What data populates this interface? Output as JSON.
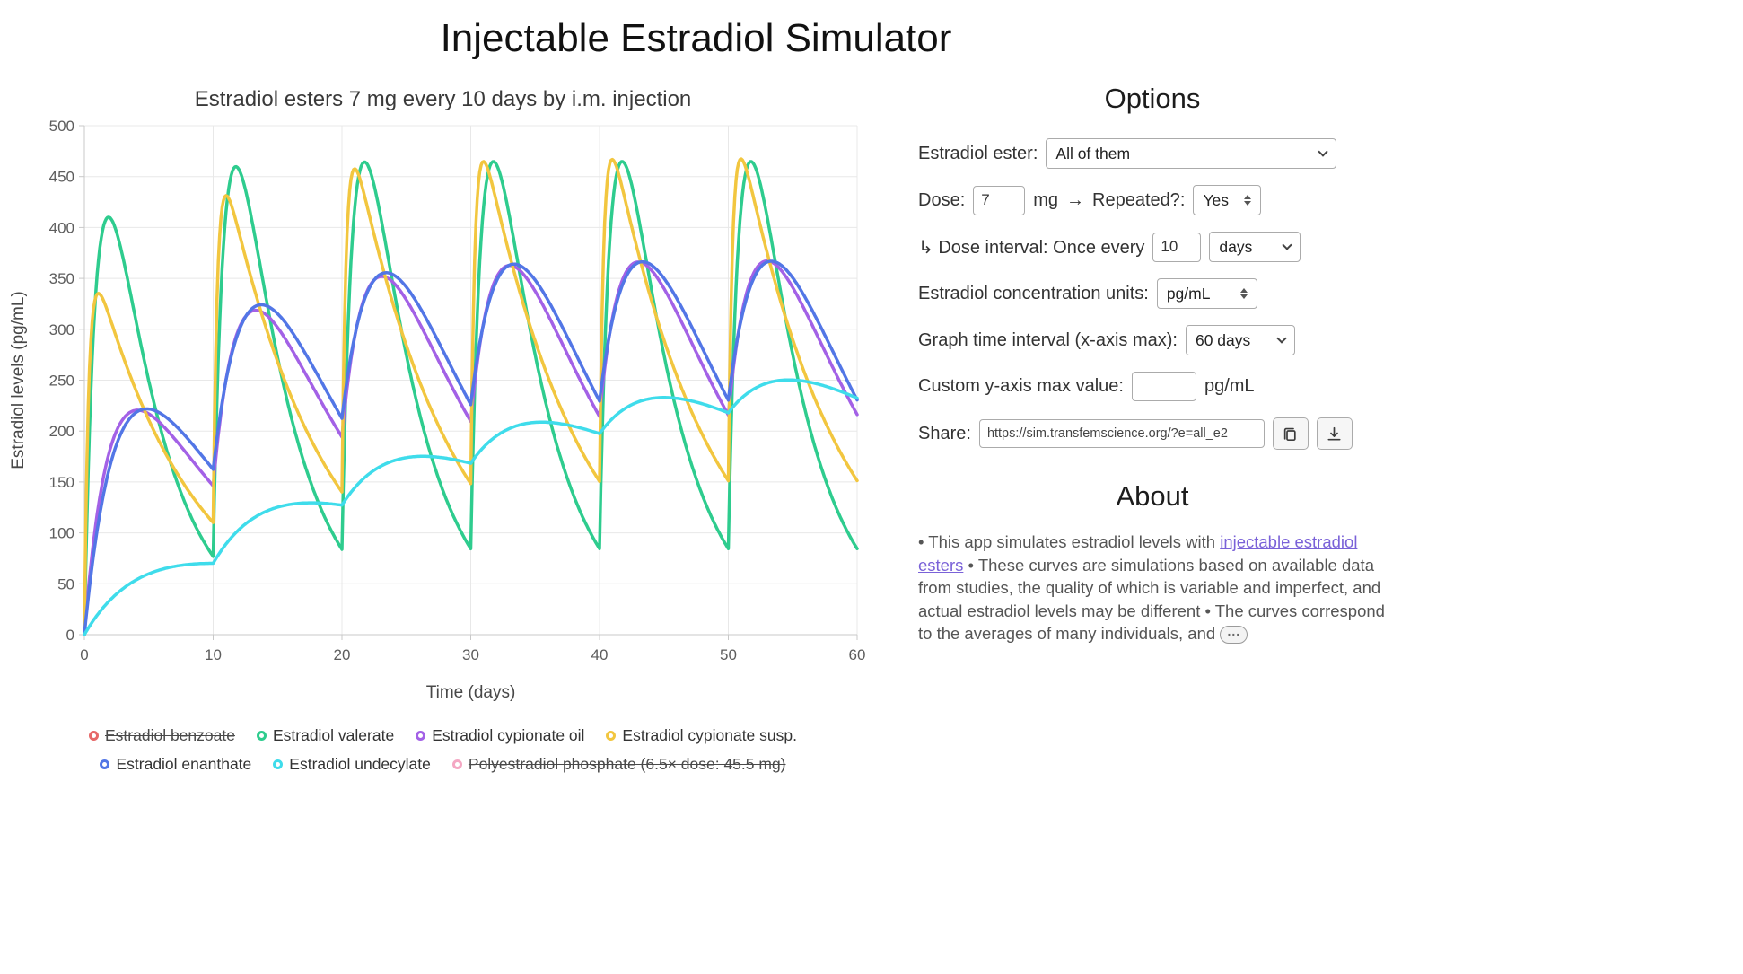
{
  "page": {
    "title": "Injectable Estradiol Simulator"
  },
  "chart_data": {
    "type": "line",
    "title": "Estradiol esters 7 mg every 10 days by i.m. injection",
    "xlabel": "Time (days)",
    "ylabel": "Estradiol levels (pg/mL)",
    "xlim": [
      0,
      60
    ],
    "ylim": [
      0,
      500
    ],
    "x_ticks": [
      0,
      10,
      20,
      30,
      40,
      50,
      60
    ],
    "y_ticks": [
      0,
      50,
      100,
      150,
      200,
      250,
      300,
      350,
      400,
      450,
      500
    ],
    "grid": true,
    "legend_position": "bottom",
    "dose_mg": 7,
    "dose_interval_days": 10,
    "dose_times": [
      0,
      10,
      20,
      30,
      40,
      50
    ],
    "series": [
      {
        "name": "Estradiol valerate",
        "color": "#2ecc8e",
        "model": {
          "C": 847,
          "ka": 1.0,
          "ke": 0.24
        },
        "points_read": [
          [
            0,
            0
          ],
          [
            1.9,
            410
          ],
          [
            10,
            86
          ],
          [
            11.9,
            461
          ],
          [
            20,
            87
          ],
          [
            21.9,
            466
          ],
          [
            30,
            88
          ],
          [
            31.9,
            466
          ],
          [
            40,
            87
          ],
          [
            41.9,
            466
          ],
          [
            50,
            88
          ],
          [
            51.9,
            466
          ],
          [
            60,
            90
          ]
        ]
      },
      {
        "name": "Estradiol cypionate oil",
        "color": "#a361e6",
        "model": {
          "C": 480,
          "ka": 0.44,
          "ke": 0.115
        },
        "points_read": [
          [
            0,
            0
          ],
          [
            4.1,
            215
          ],
          [
            10,
            141
          ],
          [
            14.1,
            309
          ],
          [
            20.5,
            192
          ],
          [
            24.1,
            338
          ],
          [
            30.5,
            204
          ],
          [
            34.1,
            351
          ],
          [
            40.5,
            209
          ],
          [
            44.1,
            357
          ],
          [
            50.5,
            211
          ],
          [
            54.1,
            360
          ],
          [
            60,
            224
          ]
        ]
      },
      {
        "name": "Estradiol cypionate susp.",
        "color": "#f2c63f",
        "model": {
          "C": 404,
          "ka": 3.0,
          "ke": 0.13
        },
        "points_read": [
          [
            0,
            0
          ],
          [
            1.1,
            335
          ],
          [
            10,
            108
          ],
          [
            11.1,
            428
          ],
          [
            20,
            139
          ],
          [
            21.1,
            455
          ],
          [
            30,
            144
          ],
          [
            31.1,
            461
          ],
          [
            40,
            146
          ],
          [
            41.1,
            462
          ],
          [
            50,
            147
          ],
          [
            51.1,
            462
          ],
          [
            60,
            146
          ]
        ]
      },
      {
        "name": "Estradiol enanthate",
        "color": "#5276e6",
        "model": {
          "C": 775,
          "ka": 0.3,
          "ke": 0.135
        },
        "points_read": [
          [
            0,
            0
          ],
          [
            5.8,
            225
          ],
          [
            10.8,
            186
          ],
          [
            15.3,
            315
          ],
          [
            20.9,
            235
          ],
          [
            25.3,
            339
          ],
          [
            30.9,
            243
          ],
          [
            35.3,
            344
          ],
          [
            40.9,
            246
          ],
          [
            45.3,
            346
          ],
          [
            50.9,
            247
          ],
          [
            55.3,
            346
          ],
          [
            60,
            231
          ]
        ]
      },
      {
        "name": "Estradiol undecylate",
        "color": "#3fdceb",
        "model": {
          "C": 118,
          "ka": 0.22,
          "ke": 0.035
        },
        "points_read": [
          [
            0,
            0
          ],
          [
            5,
            60
          ],
          [
            9.5,
            72
          ],
          [
            14,
            125
          ],
          [
            20,
            127
          ],
          [
            25,
            173
          ],
          [
            30,
            167
          ],
          [
            35,
            207
          ],
          [
            40,
            197
          ],
          [
            45,
            234
          ],
          [
            50,
            221
          ],
          [
            55,
            251
          ],
          [
            60,
            242
          ]
        ]
      }
    ],
    "legend": [
      {
        "label": "Estradiol benzoate",
        "color": "#e66868",
        "disabled": true
      },
      {
        "label": "Estradiol valerate",
        "color": "#2ecc8e",
        "disabled": false
      },
      {
        "label": "Estradiol cypionate oil",
        "color": "#a361e6",
        "disabled": false
      },
      {
        "label": "Estradiol cypionate susp.",
        "color": "#f2c63f",
        "disabled": false
      },
      {
        "label": "Estradiol enanthate",
        "color": "#5276e6",
        "disabled": false
      },
      {
        "label": "Estradiol undecylate",
        "color": "#3fdceb",
        "disabled": false
      },
      {
        "label": "Polyestradiol phosphate (6.5× dose: 45.5 mg)",
        "color": "#f4a7c3",
        "disabled": true
      }
    ],
    "legend_rows": [
      [
        0,
        1,
        2,
        3
      ],
      [
        4,
        5,
        6
      ]
    ]
  },
  "options": {
    "heading": "Options",
    "ester_label": "Estradiol ester:",
    "ester_value": "All of them",
    "dose_label": "Dose:",
    "dose_value": "7",
    "dose_unit": "mg",
    "arrow_glyph": "→",
    "repeated_label": "Repeated?:",
    "repeated_value": "Yes",
    "interval_label": "↳ Dose interval: Once every",
    "interval_value": "10",
    "interval_unit_value": "days",
    "units_label": "Estradiol concentration units:",
    "units_value": "pg/mL",
    "graph_label": "Graph time interval (x-axis max):",
    "graph_value": "60 days",
    "ymax_label": "Custom y-axis max value:",
    "ymax_value": "",
    "ymax_unit": "pg/mL",
    "share_label": "Share:",
    "share_value": "https://sim.transfemscience.org/?e=all_e2"
  },
  "about": {
    "heading": "About",
    "pre_link": "• This app simulates estradiol levels with ",
    "link_text": "injectable estradiol esters",
    "post_link": " • These curves are simulations based on available data from studies, the quality of which is variable and imperfect, and actual estradiol levels may be different • The curves correspond to the averages of many individuals, and ",
    "expander_label": "..."
  }
}
